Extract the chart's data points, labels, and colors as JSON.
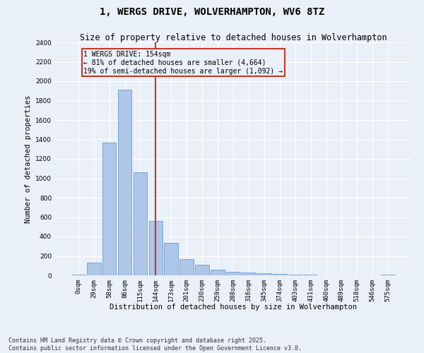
{
  "title": "1, WERGS DRIVE, WOLVERHAMPTON, WV6 8TZ",
  "subtitle": "Size of property relative to detached houses in Wolverhampton",
  "xlabel": "Distribution of detached houses by size in Wolverhampton",
  "ylabel": "Number of detached properties",
  "categories": [
    "0sqm",
    "29sqm",
    "58sqm",
    "86sqm",
    "115sqm",
    "144sqm",
    "173sqm",
    "201sqm",
    "230sqm",
    "259sqm",
    "288sqm",
    "316sqm",
    "345sqm",
    "374sqm",
    "403sqm",
    "431sqm",
    "460sqm",
    "489sqm",
    "518sqm",
    "546sqm",
    "575sqm"
  ],
  "values": [
    10,
    130,
    1370,
    1910,
    1060,
    560,
    335,
    165,
    110,
    60,
    38,
    28,
    22,
    15,
    8,
    5,
    3,
    2,
    1,
    1,
    10
  ],
  "bar_color": "#aec6e8",
  "bar_edge_color": "#5a8fc2",
  "vline_color": "#c0392b",
  "annotation_text": "1 WERGS DRIVE: 154sqm\n← 81% of detached houses are smaller (4,664)\n19% of semi-detached houses are larger (1,092) →",
  "annotation_box_color": "#c0392b",
  "ylim": [
    0,
    2400
  ],
  "yticks": [
    0,
    200,
    400,
    600,
    800,
    1000,
    1200,
    1400,
    1600,
    1800,
    2000,
    2200,
    2400
  ],
  "footer": "Contains HM Land Registry data © Crown copyright and database right 2025.\nContains public sector information licensed under the Open Government Licence v3.0.",
  "bg_color": "#eaf0f8",
  "grid_color": "#ffffff",
  "title_fontsize": 10,
  "subtitle_fontsize": 8.5,
  "axis_label_fontsize": 7.5,
  "tick_fontsize": 6.5,
  "footer_fontsize": 6,
  "annot_fontsize": 7
}
